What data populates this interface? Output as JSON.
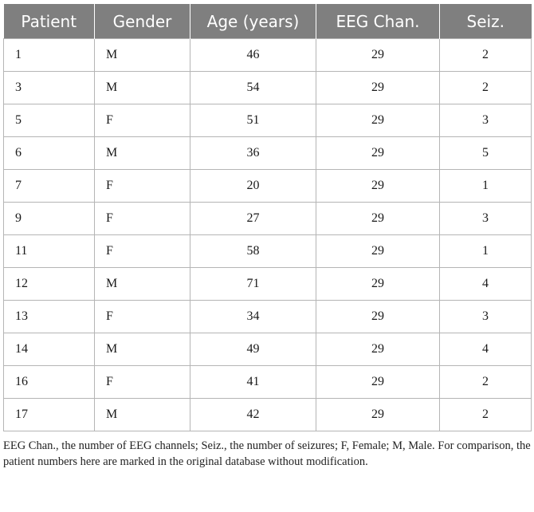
{
  "table": {
    "headers": [
      "Patient",
      "Gender",
      "Age (years)",
      "EEG Chan.",
      "Seiz."
    ],
    "rows": [
      [
        "1",
        "M",
        "46",
        "29",
        "2"
      ],
      [
        "3",
        "M",
        "54",
        "29",
        "2"
      ],
      [
        "5",
        "F",
        "51",
        "29",
        "3"
      ],
      [
        "6",
        "M",
        "36",
        "29",
        "5"
      ],
      [
        "7",
        "F",
        "20",
        "29",
        "1"
      ],
      [
        "9",
        "F",
        "27",
        "29",
        "3"
      ],
      [
        "11",
        "F",
        "58",
        "29",
        "1"
      ],
      [
        "12",
        "M",
        "71",
        "29",
        "4"
      ],
      [
        "13",
        "F",
        "34",
        "29",
        "3"
      ],
      [
        "14",
        "M",
        "49",
        "29",
        "4"
      ],
      [
        "16",
        "F",
        "41",
        "29",
        "2"
      ],
      [
        "17",
        "M",
        "42",
        "29",
        "2"
      ]
    ]
  },
  "footnote": "EEG Chan., the number of EEG channels; Seiz., the number of seizures; F, Female; M, Male. For comparison, the patient numbers here are marked in the original database without modification.",
  "colors": {
    "header_bg": "#7f7f7f",
    "header_text": "#ffffff",
    "border": "#b5b5b5"
  }
}
